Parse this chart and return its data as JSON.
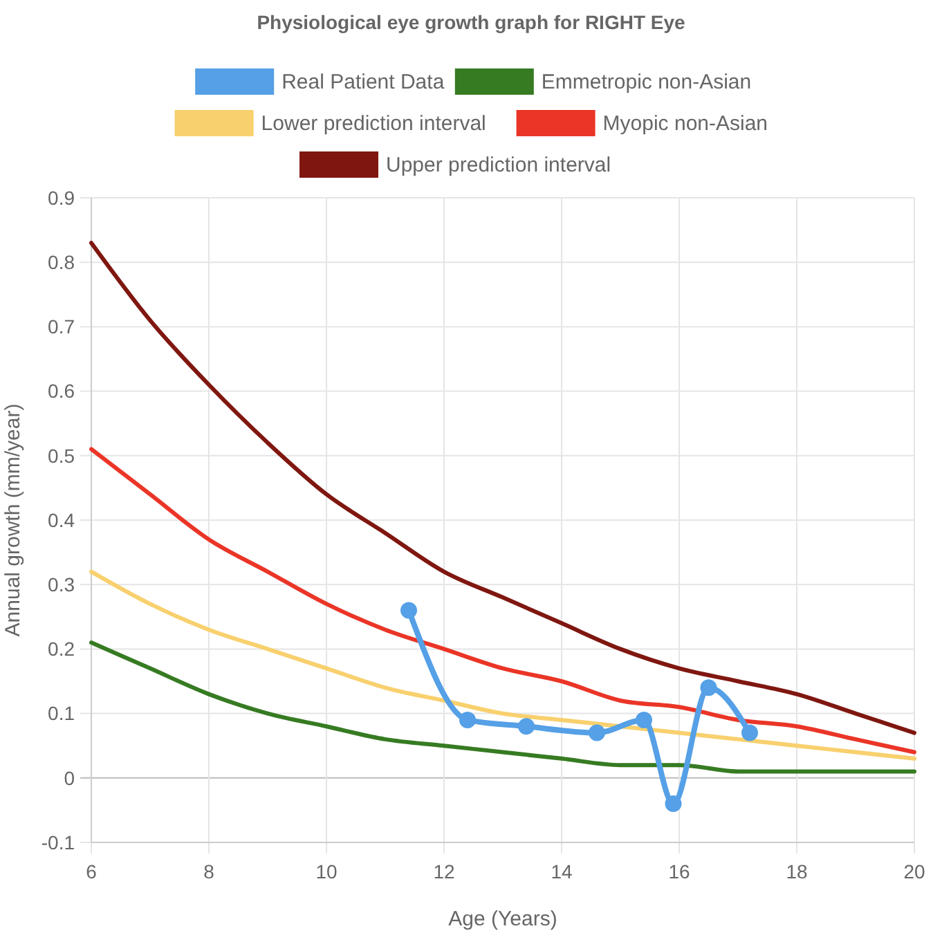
{
  "chart_data": {
    "type": "line",
    "title": "Physiological eye growth graph for RIGHT Eye",
    "xlabel": "Age (Years)",
    "ylabel": "Annual growth (mm/year)",
    "xlim": [
      6,
      20
    ],
    "xticks": [
      6,
      8,
      10,
      12,
      14,
      16,
      18,
      20
    ],
    "ylim": [
      -0.1,
      0.9
    ],
    "yticks": [
      -0.1,
      0,
      0.1,
      0.2,
      0.3,
      0.4,
      0.5,
      0.6,
      0.7,
      0.8,
      0.9
    ],
    "grid": true,
    "legend": "top",
    "series": [
      {
        "name": "Real Patient Data",
        "color": "#55a0e6",
        "marker": "circle",
        "x": [
          11.4,
          12.4,
          13.4,
          14.6,
          15.4,
          15.9,
          16.5,
          17.2
        ],
        "values": [
          0.26,
          0.09,
          0.08,
          0.07,
          0.09,
          -0.04,
          0.14,
          0.07
        ]
      },
      {
        "name": "Emmetropic non-Asian",
        "color": "#367b22",
        "marker": "none",
        "x": [
          6,
          7,
          8,
          9,
          10,
          11,
          12,
          13,
          14,
          15,
          16,
          17,
          18,
          19,
          20
        ],
        "values": [
          0.21,
          0.17,
          0.13,
          0.1,
          0.08,
          0.06,
          0.05,
          0.04,
          0.03,
          0.02,
          0.02,
          0.01,
          0.01,
          0.01,
          0.01
        ]
      },
      {
        "name": "Lower prediction interval",
        "color": "#f8d06e",
        "marker": "none",
        "x": [
          6,
          7,
          8,
          9,
          10,
          11,
          12,
          13,
          14,
          15,
          16,
          17,
          18,
          19,
          20
        ],
        "values": [
          0.32,
          0.27,
          0.23,
          0.2,
          0.17,
          0.14,
          0.12,
          0.1,
          0.09,
          0.08,
          0.07,
          0.06,
          0.05,
          0.04,
          0.03
        ]
      },
      {
        "name": "Myopic non-Asian",
        "color": "#ea3527",
        "marker": "none",
        "x": [
          6,
          7,
          8,
          9,
          10,
          11,
          12,
          13,
          14,
          15,
          16,
          17,
          18,
          19,
          20
        ],
        "values": [
          0.51,
          0.44,
          0.37,
          0.32,
          0.27,
          0.23,
          0.2,
          0.17,
          0.15,
          0.12,
          0.11,
          0.09,
          0.08,
          0.06,
          0.04
        ]
      },
      {
        "name": "Upper prediction interval",
        "color": "#7f1710",
        "marker": "none",
        "x": [
          6,
          7,
          8,
          9,
          10,
          11,
          12,
          13,
          14,
          15,
          16,
          17,
          18,
          19,
          20
        ],
        "values": [
          0.83,
          0.71,
          0.61,
          0.52,
          0.44,
          0.38,
          0.32,
          0.28,
          0.24,
          0.2,
          0.17,
          0.15,
          0.13,
          0.1,
          0.07
        ]
      }
    ]
  }
}
